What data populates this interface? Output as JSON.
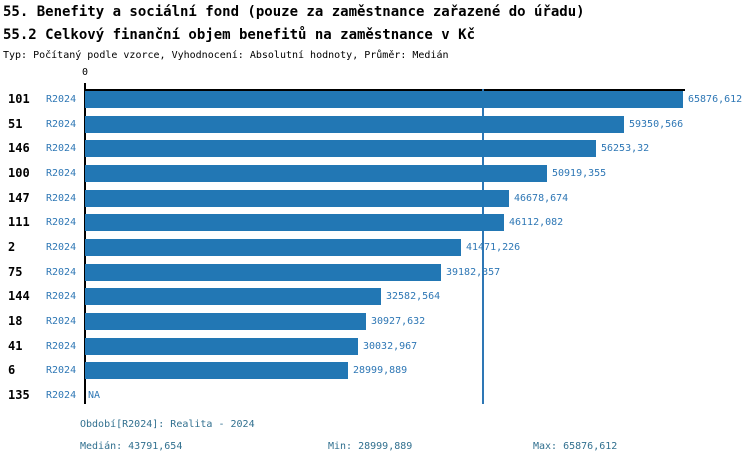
{
  "chart_data": {
    "type": "bar",
    "orientation": "horizontal",
    "title": "55. Benefity a sociální fond (pouze za zaměstnance zařazené do úřadu)",
    "subtitle": "55.2 Celkový finanční objem benefitů na zaměstnance v Kč",
    "meta": "Typ: Počítaný podle vzorce, Vyhodnocení: Absolutní hodnoty, Průměr: Medián",
    "x_axis_zero_label": "0",
    "xlim": [
      0,
      65876.612
    ],
    "grid": false,
    "categories": [
      "101",
      "51",
      "146",
      "100",
      "147",
      "111",
      "2",
      "75",
      "144",
      "18",
      "41",
      "6",
      "135"
    ],
    "series": [
      {
        "name": "R2024",
        "values": [
          65876.612,
          59350.566,
          56253.32,
          50919.355,
          46678.674,
          46112.082,
          41471.226,
          39182.357,
          32582.564,
          30927.632,
          30032.967,
          28999.889,
          null
        ],
        "value_labels": [
          "65876,612",
          "59350,566",
          "56253,32",
          "50919,355",
          "46678,674",
          "46112,082",
          "41471,226",
          "39182,357",
          "32582,564",
          "30927,632",
          "30032,967",
          "28999,889",
          "NA"
        ]
      }
    ],
    "median_value": 43791.654,
    "colors": {
      "bar": "#2277b4",
      "blue_label": "#2e77b5",
      "median_line": "#2e77b5",
      "axis": "#000000",
      "footer_text": "#31708f"
    }
  },
  "footer": {
    "period": "Období[R2024]: Realita - 2024",
    "median": "Medián: 43791,654",
    "min": "Min: 28999,889",
    "max": "Max: 65876,612"
  }
}
